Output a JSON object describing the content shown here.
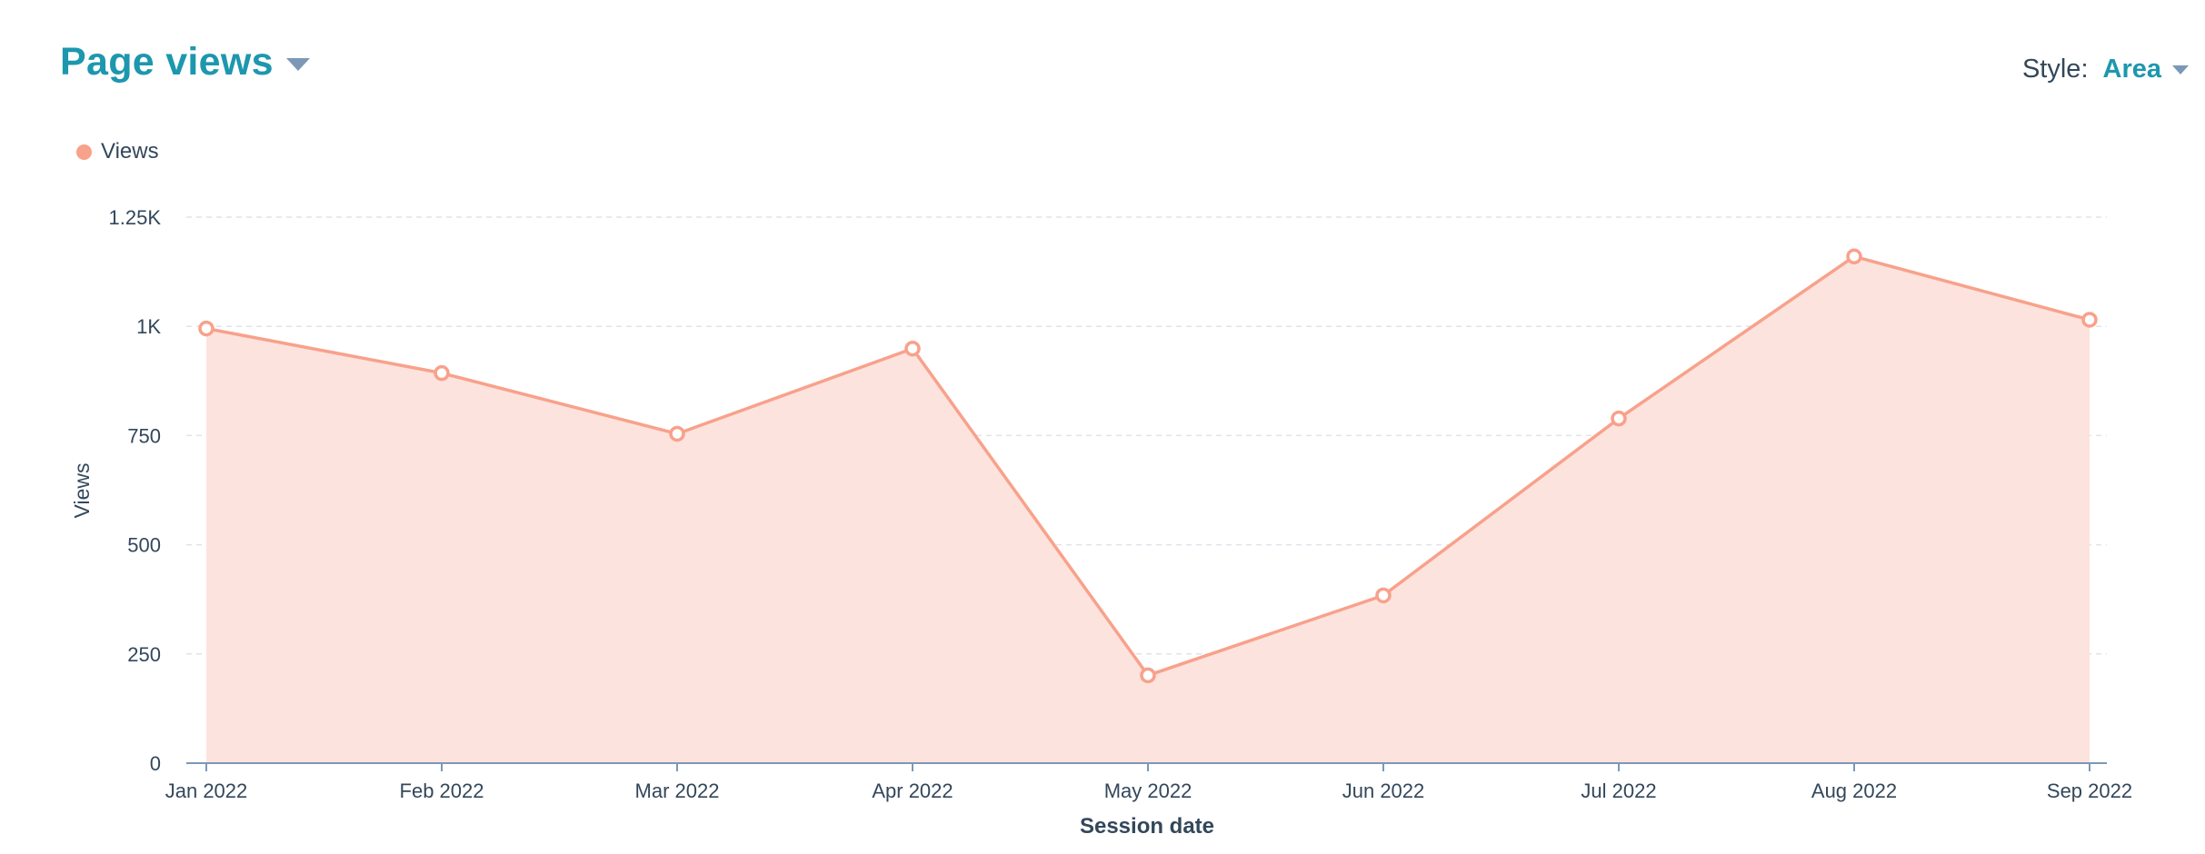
{
  "header": {
    "title": "Page views",
    "style_label": "Style:",
    "style_value": "Area"
  },
  "colors": {
    "accent": "#1d97ae",
    "series": "#f8a18b",
    "area_fill": "#fde3dd",
    "text": "#33475b",
    "caret": "#7c98b6",
    "grid": "#dfe3eb",
    "axis": "#7c98b6"
  },
  "icons": {
    "title_caret": "chevron-down-icon",
    "style_caret": "chevron-down-icon"
  },
  "chart_data": {
    "type": "area",
    "title": "Page views",
    "xlabel": "Session date",
    "ylabel": "Views",
    "categories": [
      "Jan 2022",
      "Feb 2022",
      "Mar 2022",
      "Apr 2022",
      "May 2022",
      "Jun 2022",
      "Jul 2022",
      "Aug 2022",
      "Sep 2022"
    ],
    "series": [
      {
        "name": "Views",
        "values": [
          995,
          893,
          754,
          949,
          201,
          384,
          789,
          1160,
          1015
        ]
      }
    ],
    "ylim": [
      0,
      1250
    ],
    "yticks": [
      {
        "value": 0,
        "label": "0"
      },
      {
        "value": 250,
        "label": "250"
      },
      {
        "value": 500,
        "label": "500"
      },
      {
        "value": 750,
        "label": "750"
      },
      {
        "value": 1000,
        "label": "1K"
      },
      {
        "value": 1250,
        "label": "1.25K"
      }
    ],
    "grid": true,
    "legend_position": "top-left",
    "markers": true
  }
}
